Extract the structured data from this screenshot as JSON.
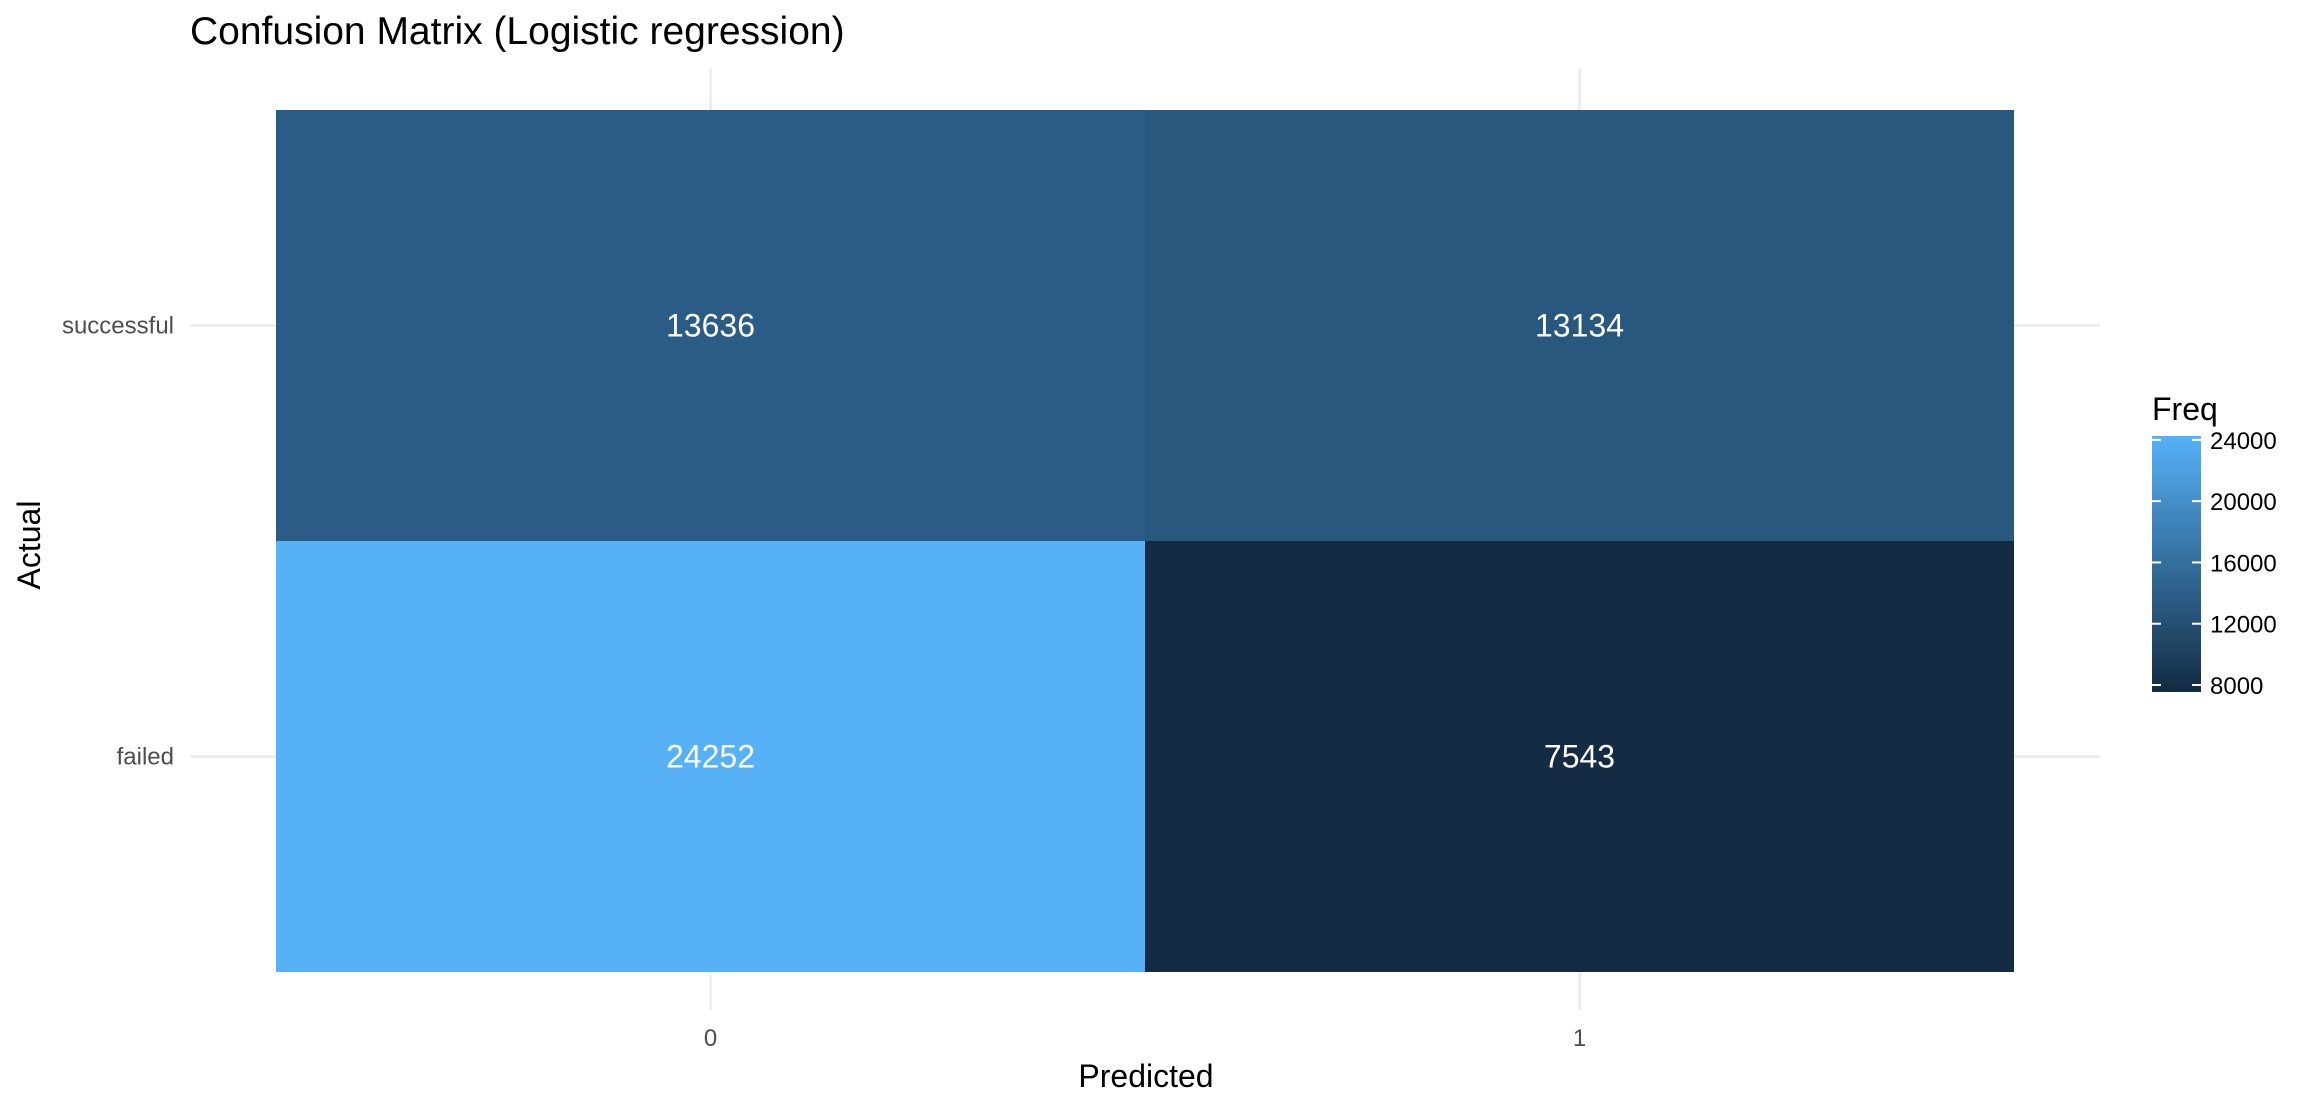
{
  "chart_data": {
    "type": "heatmap",
    "title": "Confusion Matrix (Logistic regression)",
    "xlabel": "Predicted",
    "ylabel": "Actual",
    "x_categories": [
      "0",
      "1"
    ],
    "y_categories": [
      "failed",
      "successful"
    ],
    "cells": [
      {
        "x": "0",
        "y": "successful",
        "value": 13636
      },
      {
        "x": "1",
        "y": "successful",
        "value": 13134
      },
      {
        "x": "0",
        "y": "failed",
        "value": 24252
      },
      {
        "x": "1",
        "y": "failed",
        "value": 7543
      }
    ],
    "color_scale": {
      "low": "#132b43",
      "high": "#56b1f7",
      "domain": [
        7543,
        24252
      ]
    },
    "legend": {
      "title": "Freq",
      "ticks": [
        "24000",
        "20000",
        "16000",
        "12000",
        "8000"
      ],
      "tick_values": [
        24000,
        20000,
        16000,
        12000,
        8000
      ],
      "placement": "right"
    },
    "grid": true
  }
}
